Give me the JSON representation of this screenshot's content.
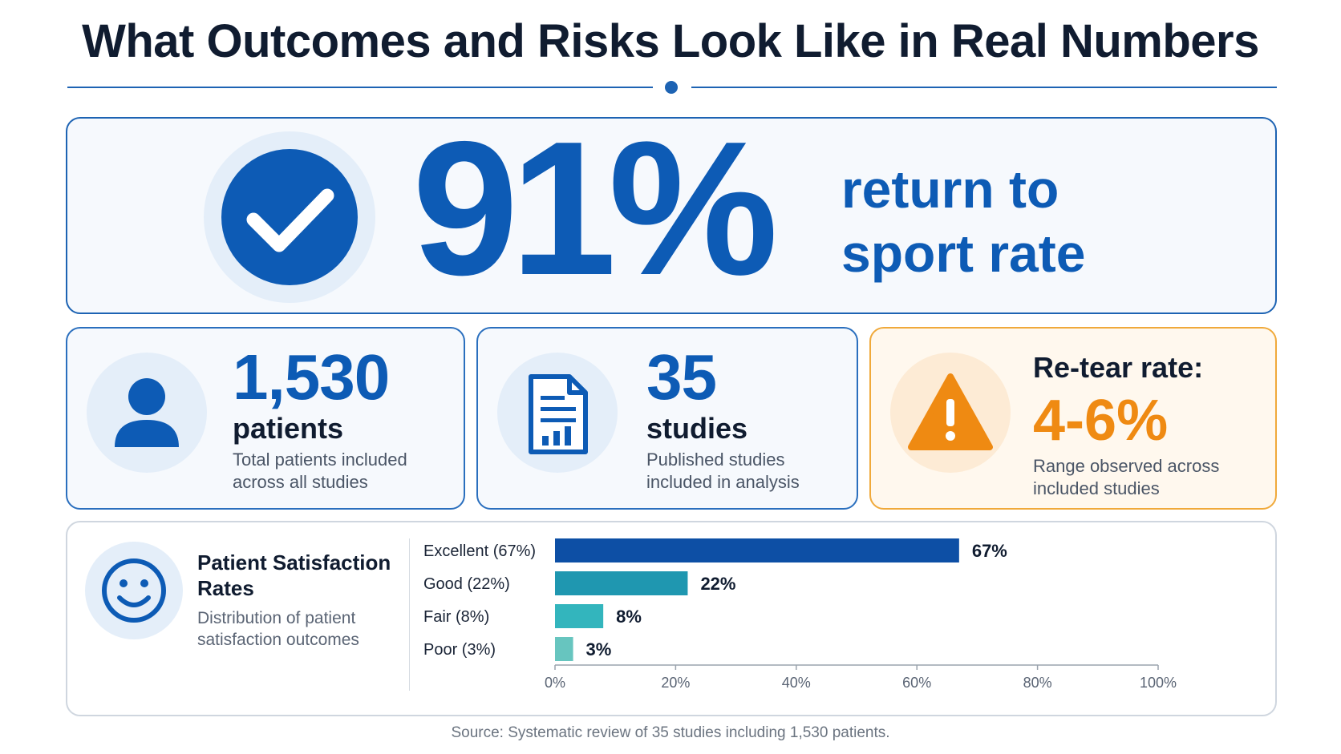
{
  "title": "What Outcomes and Risks Look Like in Real Numbers",
  "hero": {
    "value": "91%",
    "label_line1": "return to",
    "label_line2": "sport rate",
    "icon": "check-circle-icon"
  },
  "stats": {
    "patients": {
      "value": "1,530",
      "unit": "patients",
      "desc": "Total patients included across all studies",
      "icon": "person-icon"
    },
    "studies": {
      "value": "35",
      "unit": "studies",
      "desc": "Published studies included in analysis",
      "icon": "document-chart-icon"
    },
    "retear": {
      "label": "Re-tear rate:",
      "value": "4-6%",
      "desc": "Range observed across included studies",
      "icon": "warning-icon"
    }
  },
  "satisfaction": {
    "title": "Patient Satisfaction Rates",
    "desc": "Distribution of patient satisfaction outcomes",
    "icon": "smiley-icon"
  },
  "chart_data": {
    "type": "bar",
    "orientation": "horizontal",
    "categories": [
      "Excellent",
      "Good",
      "Fair",
      "Poor"
    ],
    "category_labels": [
      "Excellent  (67%)",
      "Good  (22%)",
      "Fair  (8%)",
      "Poor  (3%)"
    ],
    "values": [
      67,
      22,
      8,
      3
    ],
    "value_labels": [
      "67%",
      "22%",
      "8%",
      "3%"
    ],
    "colors": [
      "#0d4fa5",
      "#1f97b0",
      "#33b5bd",
      "#67c5bf"
    ],
    "xlim": [
      0,
      100
    ],
    "xticks": [
      0,
      20,
      40,
      60,
      80,
      100
    ],
    "xtick_labels": [
      "0%",
      "20%",
      "40%",
      "60%",
      "80%",
      "100%"
    ],
    "grid": false
  },
  "source": "Source: Systematic review of 35 studies including 1,530 patients.",
  "colors": {
    "primary": "#0d5bb5",
    "accent_orange": "#ef8a12",
    "text_dark": "#101c30"
  }
}
